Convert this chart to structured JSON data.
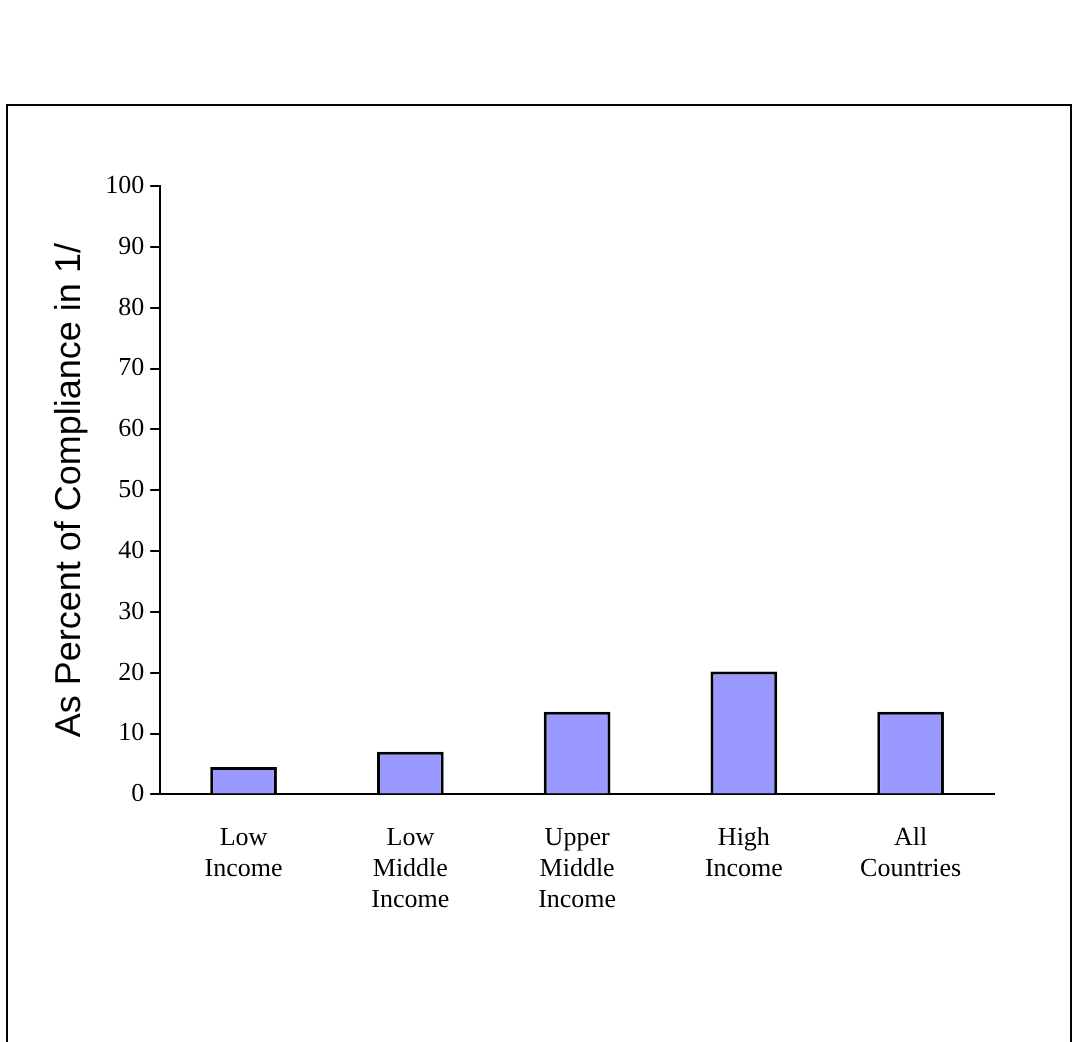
{
  "chart_data": {
    "type": "bar",
    "ylabel": "As Percent of Compliance in 1/",
    "categories": [
      "Low Income",
      "Low Middle Income",
      "Upper Middle Income",
      "High Income",
      "All Countries"
    ],
    "values": [
      4.5,
      7,
      13.6,
      20.2,
      13.6
    ],
    "color": "#9999ff",
    "ylim": [
      0,
      100
    ],
    "yticks": [
      0,
      10,
      20,
      30,
      40,
      50,
      60,
      70,
      80,
      90,
      100
    ],
    "grid": false,
    "legend": false
  }
}
